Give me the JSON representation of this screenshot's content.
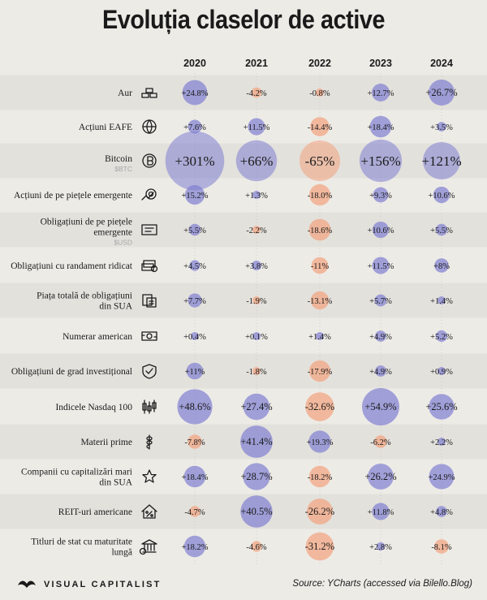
{
  "title": "Evoluția claselor de active",
  "footer": {
    "brand": "VISUAL CAPITALIST",
    "source": "Source: YCharts (accessed via Bilello.Blog)"
  },
  "colors": {
    "positive": "#7f7fd1",
    "negative": "#f2a37e",
    "text": "#1a1a1a",
    "ticker": "#a6a6a6",
    "band": "#e3e1dc"
  },
  "chart_data": {
    "type": "bubble-table",
    "title": "Evoluția claselor de active",
    "years": [
      "2020",
      "2021",
      "2022",
      "2023",
      "2024"
    ],
    "rows": [
      {
        "label": [
          "Aur"
        ],
        "ticker": "",
        "icon": "gold-bars-icon",
        "values": [
          24.8,
          -4.2,
          -0.8,
          12.7,
          26.7
        ],
        "labels": [
          "+24.8%",
          "-4.2%",
          "-0.8%",
          "+12.7%",
          "+26.7%"
        ]
      },
      {
        "label": [
          "Acțiuni EAFE"
        ],
        "ticker": "",
        "icon": "globe-icon",
        "values": [
          7.6,
          11.5,
          -14.4,
          18.4,
          3.5
        ],
        "labels": [
          "+7.6%",
          "+11.5%",
          "-14.4%",
          "+18.4%",
          "+3.5%"
        ]
      },
      {
        "label": [
          "Bitcoin"
        ],
        "ticker": "$BTC",
        "icon": "bitcoin-icon",
        "values": [
          301,
          66,
          -65,
          156,
          121
        ],
        "labels": [
          "+301%",
          "+66%",
          "-65%",
          "+156%",
          "+121%"
        ]
      },
      {
        "label": [
          "Acțiuni de pe piețele emergente"
        ],
        "ticker": "",
        "icon": "growth-target-icon",
        "values": [
          15.2,
          1.3,
          -18.0,
          9.3,
          10.6
        ],
        "labels": [
          "+15.2%",
          "+1.3%",
          "-18.0%",
          "+9.3%",
          "+10.6%"
        ]
      },
      {
        "label": [
          "Obligațiuni de pe piețele",
          "emergente"
        ],
        "ticker": "$USD",
        "icon": "bond-certificate-icon",
        "values": [
          5.5,
          -2.2,
          -18.6,
          10.6,
          5.5
        ],
        "labels": [
          "+5.5%",
          "-2.2%",
          "-18.6%",
          "+10.6%",
          "+5.5%"
        ]
      },
      {
        "label": [
          "Obligațiuni cu randament ridicat"
        ],
        "ticker": "",
        "icon": "cash-stack-icon",
        "values": [
          4.5,
          3.8,
          -11,
          11.5,
          8
        ],
        "labels": [
          "+4.5%",
          "+3.8%",
          "-11%",
          "+11.5%",
          "+8%"
        ]
      },
      {
        "label": [
          "Piața totală de obligațiuni",
          "din SUA"
        ],
        "ticker": "",
        "icon": "documents-icon",
        "values": [
          7.7,
          -1.9,
          -13.1,
          5.7,
          1.4
        ],
        "labels": [
          "+7.7%",
          "-1.9%",
          "-13.1%",
          "+5.7%",
          "+1.4%"
        ]
      },
      {
        "label": [
          "Numerar american"
        ],
        "ticker": "",
        "icon": "money-icon",
        "values": [
          0.4,
          0.1,
          1.4,
          4.9,
          5.2
        ],
        "labels": [
          "+0.4%",
          "+0.1%",
          "+1.4%",
          "+4.9%",
          "+5.2%"
        ]
      },
      {
        "label": [
          "Obligațiuni de grad investițional"
        ],
        "ticker": "",
        "icon": "shield-check-icon",
        "values": [
          11,
          -1.8,
          -17.9,
          4.9,
          0.9
        ],
        "labels": [
          "+11%",
          "-1.8%",
          "-17.9%",
          "+4.9%",
          "+0.9%"
        ]
      },
      {
        "label": [
          "Indicele Nasdaq 100"
        ],
        "ticker": "",
        "icon": "candlestick-icon",
        "values": [
          48.6,
          27.4,
          -32.6,
          54.9,
          25.6
        ],
        "labels": [
          "+48.6%",
          "+27.4%",
          "-32.6%",
          "+54.9%",
          "+25.6%"
        ]
      },
      {
        "label": [
          "Materii prime"
        ],
        "ticker": "",
        "icon": "wheat-icon",
        "values": [
          -7.8,
          41.4,
          19.3,
          -6.2,
          2.2
        ],
        "labels": [
          "-7.8%",
          "+41.4%",
          "+19.3%",
          "-6.2%",
          "+2.2%"
        ]
      },
      {
        "label": [
          "Companii cu capitalizări mari",
          "din SUA"
        ],
        "ticker": "",
        "icon": "star-icon",
        "values": [
          18.4,
          28.7,
          -18.2,
          26.2,
          24.9
        ],
        "labels": [
          "+18.4%",
          "+28.7%",
          "-18.2%",
          "+26.2%",
          "+24.9%"
        ]
      },
      {
        "label": [
          "REIT-uri americane"
        ],
        "ticker": "",
        "icon": "house-percent-icon",
        "values": [
          -4.7,
          40.5,
          -26.2,
          11.8,
          4.8
        ],
        "labels": [
          "-4.7%",
          "+40.5%",
          "-26.2%",
          "+11.8%",
          "+4.8%"
        ]
      },
      {
        "label": [
          "Titluri de stat cu maturitate",
          "lungă"
        ],
        "ticker": "",
        "icon": "bank-icon",
        "values": [
          18.2,
          -4.6,
          -31.2,
          2.8,
          -8.1
        ],
        "labels": [
          "+18.2%",
          "-4.6%",
          "-31.2%",
          "+2.8%",
          "-8.1%"
        ]
      }
    ]
  }
}
